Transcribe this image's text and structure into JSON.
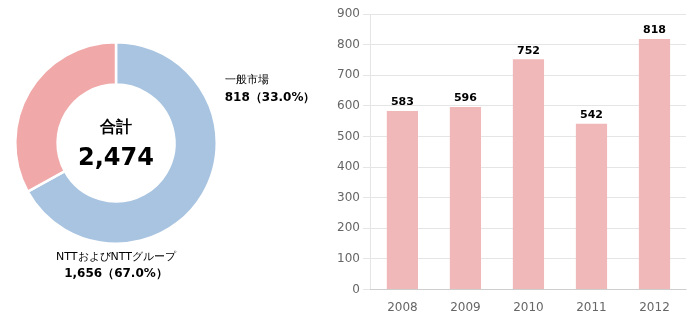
{
  "chart_data": [
    {
      "type": "pie",
      "values": [
        67.0,
        33.0
      ],
      "colors": [
        "#a8c4e0",
        "#f0a8a8"
      ],
      "annotations": [
        "合計",
        "2,474",
        "NTTおよびNTTグループ",
        "1,656（67.0%）",
        "一般市場",
        "818（33.0%）"
      ]
    },
    {
      "type": "bar",
      "categories": [
        "2008",
        "2009",
        "2010",
        "2011",
        "2012"
      ],
      "values": [
        583,
        596,
        752,
        542,
        818
      ],
      "color": "#f0b8b8",
      "ylim": [
        0,
        900
      ],
      "yticks": [
        0,
        100,
        200,
        300,
        400,
        500,
        600,
        700,
        800,
        900
      ],
      "grid": true,
      "data_labels": true
    }
  ]
}
